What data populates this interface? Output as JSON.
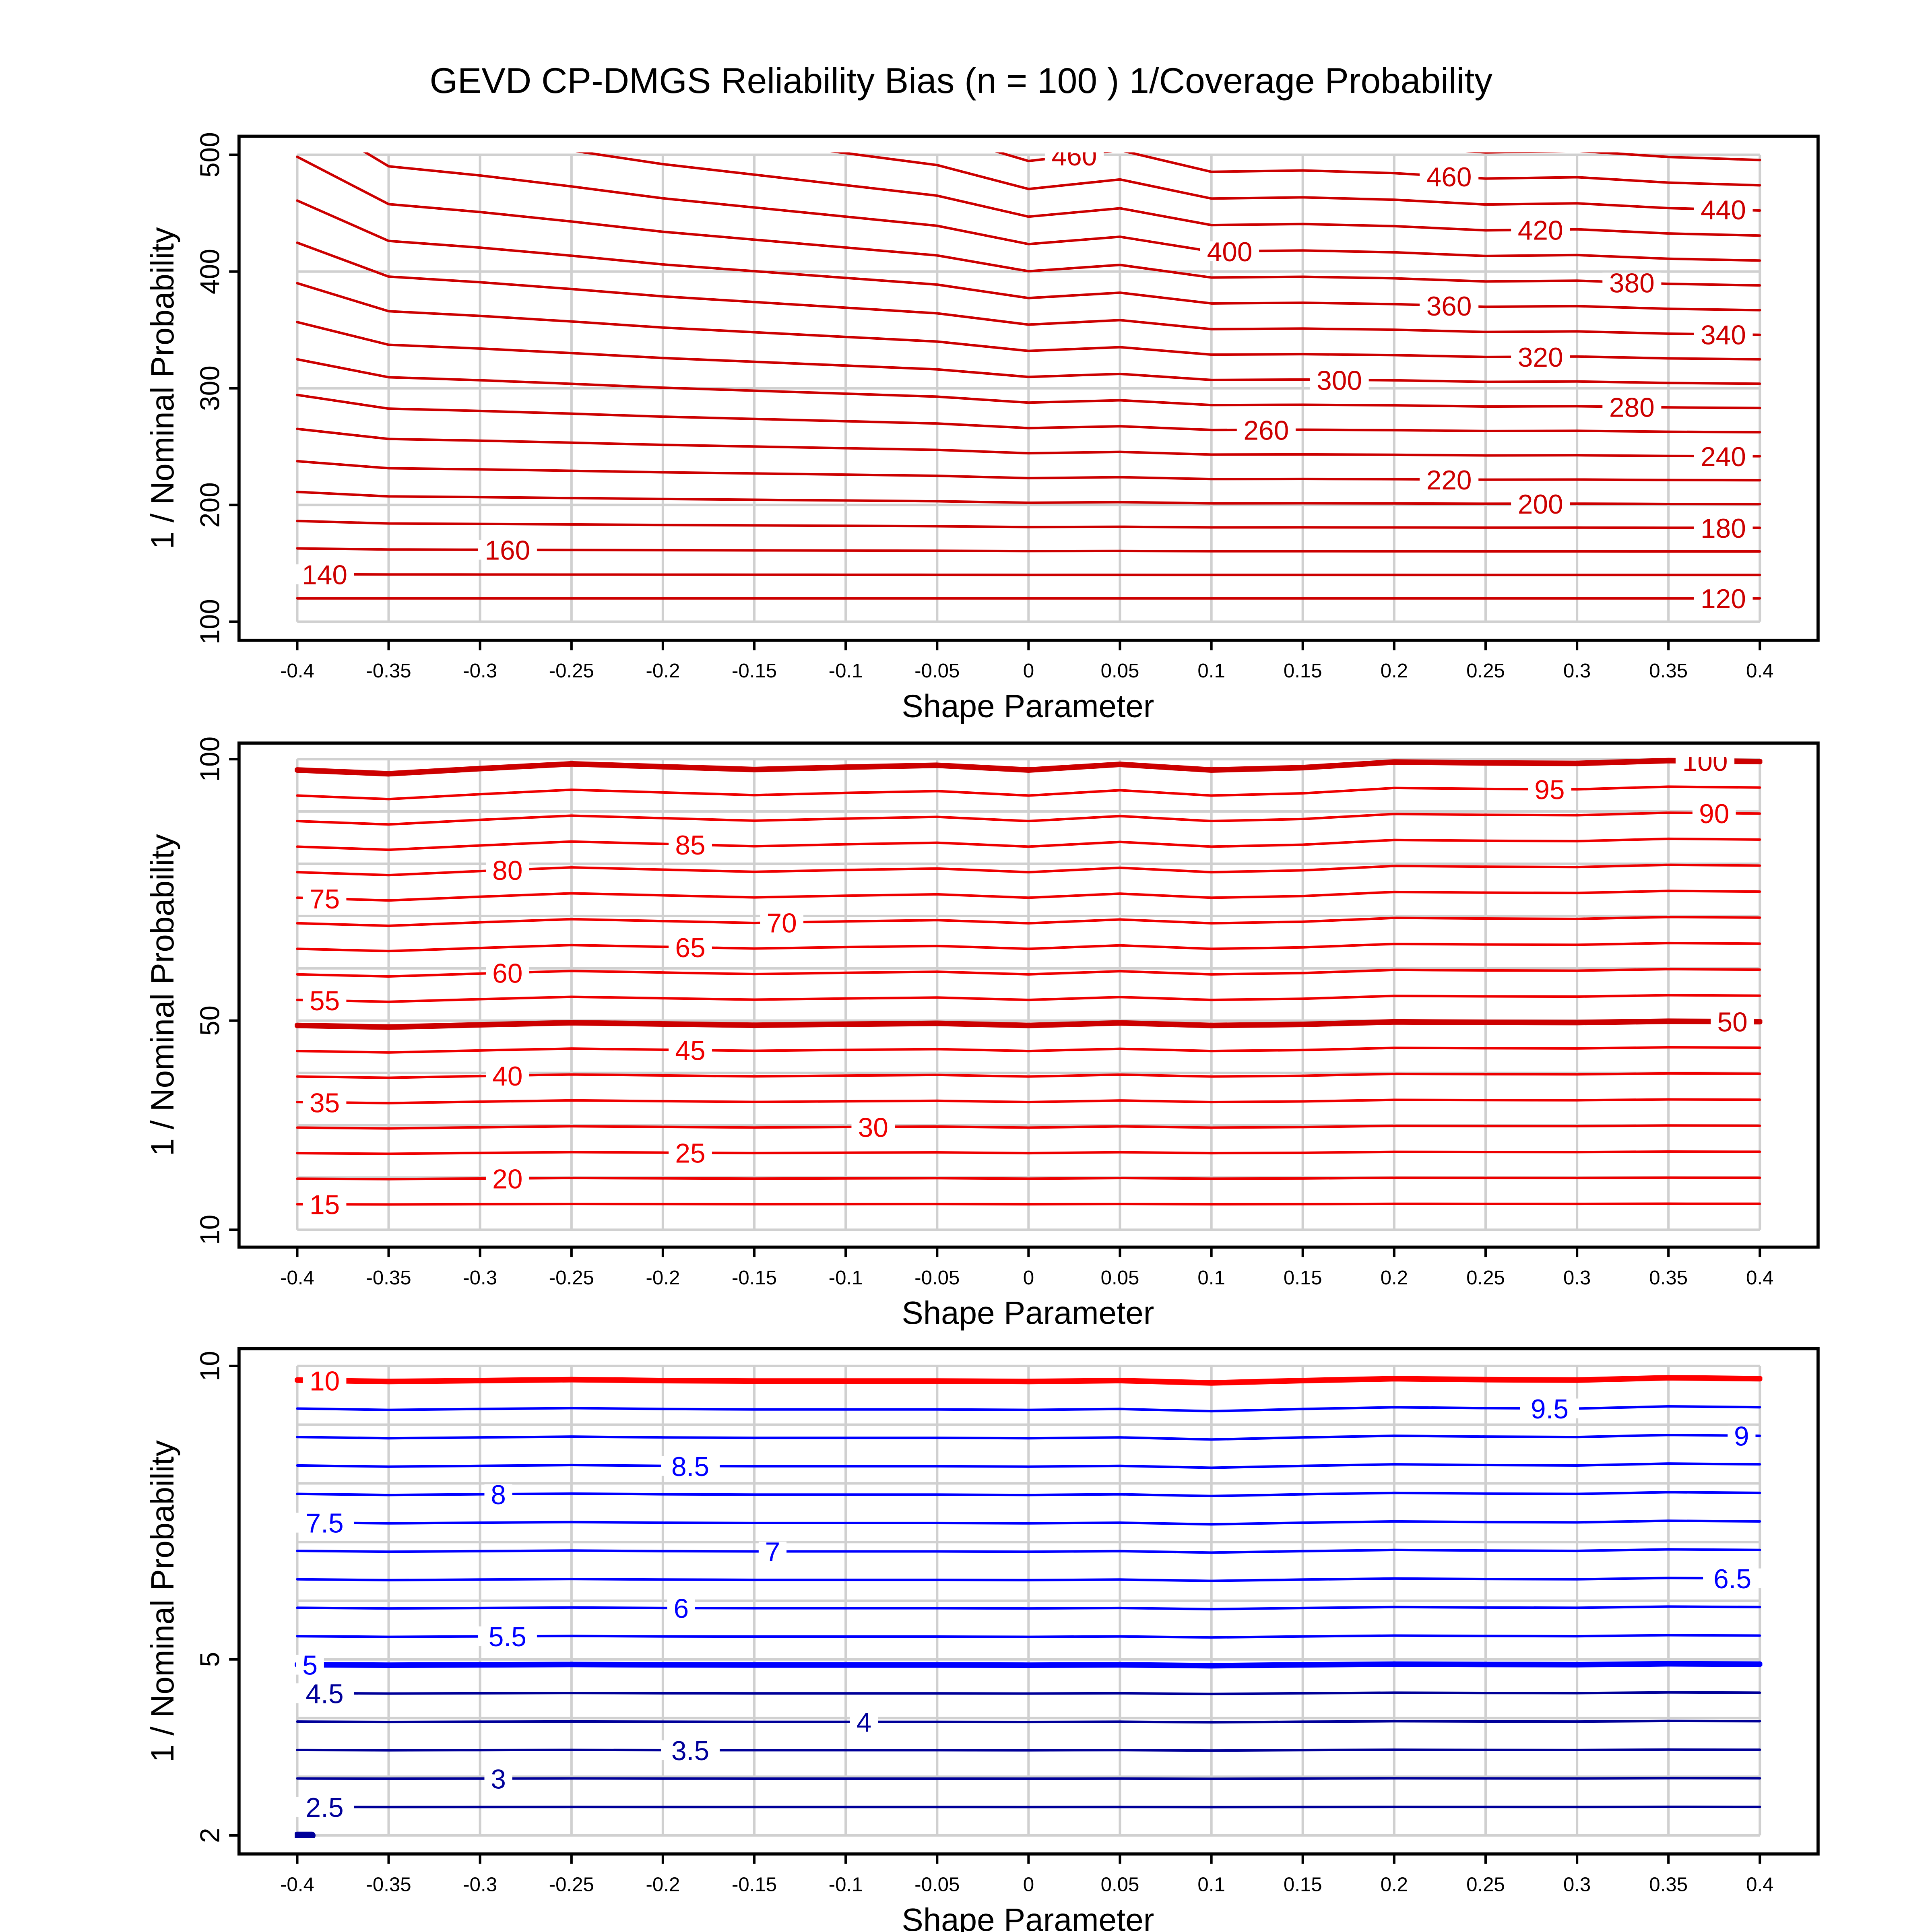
{
  "title": "GEVD CP-DMGS Reliability Bias (n = 100 ) 1/Coverage Probability",
  "chart_data": [
    {
      "type": "contour",
      "xlabel": "Shape Parameter",
      "ylabel": "1 / Nominal Probability",
      "xlim": [
        -0.4,
        0.4
      ],
      "ylim": [
        100,
        500
      ],
      "xticks": [
        -0.4,
        -0.35,
        -0.3,
        -0.25,
        -0.2,
        -0.15,
        -0.1,
        -0.05,
        0,
        0.05,
        0.1,
        0.15,
        0.2,
        0.25,
        0.3,
        0.35,
        0.4
      ],
      "yticks": [
        100,
        200,
        300,
        400,
        500
      ],
      "grid": true,
      "bias_model": "quadratic",
      "base": 120,
      "bias_by_x": [
        17.5,
        11.5,
        10.5,
        9.3,
        8,
        7,
        6,
        5,
        3.0,
        3.8,
        2.2,
        2.3,
        2.1,
        1.7,
        1.8,
        1.4,
        1.2
      ],
      "levels": [
        120,
        140,
        160,
        180,
        200,
        220,
        240,
        260,
        280,
        300,
        320,
        340,
        360,
        380,
        400,
        420,
        440,
        460,
        480,
        500
      ],
      "thick_levels": [],
      "colors": {
        "default": "#cc0000"
      },
      "labels": [
        {
          "level": 140,
          "x": -0.385,
          "text": "140"
        },
        {
          "level": 160,
          "x": -0.285,
          "text": "160"
        },
        {
          "level": 120,
          "x": 0.38,
          "text": "120"
        },
        {
          "level": 180,
          "x": 0.38,
          "text": "180"
        },
        {
          "level": 200,
          "x": 0.28,
          "text": "200"
        },
        {
          "level": 220,
          "x": 0.23,
          "text": "220"
        },
        {
          "level": 240,
          "x": 0.38,
          "text": "240"
        },
        {
          "level": 260,
          "x": 0.13,
          "text": "260"
        },
        {
          "level": 280,
          "x": 0.33,
          "text": "280"
        },
        {
          "level": 300,
          "x": 0.17,
          "text": "300"
        },
        {
          "level": 320,
          "x": 0.28,
          "text": "320"
        },
        {
          "level": 340,
          "x": 0.38,
          "text": "340"
        },
        {
          "level": 360,
          "x": 0.23,
          "text": "360"
        },
        {
          "level": 380,
          "x": 0.33,
          "text": "380"
        },
        {
          "level": 400,
          "x": 0.11,
          "text": "400"
        },
        {
          "level": 420,
          "x": 0.28,
          "text": "420"
        },
        {
          "level": 440,
          "x": 0.38,
          "text": "440"
        },
        {
          "level": 460,
          "x": 0.025,
          "text": "460"
        },
        {
          "level": 460,
          "x": 0.23,
          "text": "460"
        }
      ]
    },
    {
      "type": "contour",
      "xlabel": "Shape Parameter",
      "ylabel": "1 / Nominal Probability",
      "xlim": [
        -0.4,
        0.4
      ],
      "ylim": [
        10,
        100
      ],
      "xticks": [
        -0.4,
        -0.35,
        -0.3,
        -0.25,
        -0.2,
        -0.15,
        -0.1,
        -0.05,
        0,
        0.05,
        0.1,
        0.15,
        0.2,
        0.25,
        0.3,
        0.35,
        0.4
      ],
      "yticks": [
        10,
        50,
        100
      ],
      "grid_step": 10,
      "grid": true,
      "bias_model": "linear",
      "base": 10,
      "bias_by_x": [
        -0.023,
        -0.031,
        -0.02,
        -0.01,
        -0.016,
        -0.022,
        -0.017,
        -0.013,
        -0.023,
        -0.011,
        -0.023,
        -0.018,
        -0.006,
        -0.008,
        -0.009,
        -0.003,
        -0.005
      ],
      "levels": [
        15,
        20,
        25,
        30,
        35,
        40,
        45,
        50,
        55,
        60,
        65,
        70,
        75,
        80,
        85,
        90,
        95,
        100
      ],
      "thick_levels": [
        50,
        100
      ],
      "colors": {
        "default": "#ee0000",
        "thick": "#cc0000"
      },
      "labels": [
        {
          "level": 100,
          "x": 0.37,
          "text": "100"
        },
        {
          "level": 95,
          "x": 0.285,
          "text": "95"
        },
        {
          "level": 90,
          "x": 0.375,
          "text": "90"
        },
        {
          "level": 85,
          "x": -0.185,
          "text": "85"
        },
        {
          "level": 80,
          "x": -0.285,
          "text": "80"
        },
        {
          "level": 75,
          "x": -0.385,
          "text": "75"
        },
        {
          "level": 70,
          "x": -0.135,
          "text": "70"
        },
        {
          "level": 65,
          "x": -0.185,
          "text": "65"
        },
        {
          "level": 60,
          "x": -0.285,
          "text": "60"
        },
        {
          "level": 55,
          "x": -0.385,
          "text": "55"
        },
        {
          "level": 50,
          "x": 0.385,
          "text": "50"
        },
        {
          "level": 45,
          "x": -0.185,
          "text": "45"
        },
        {
          "level": 40,
          "x": -0.285,
          "text": "40"
        },
        {
          "level": 35,
          "x": -0.385,
          "text": "35"
        },
        {
          "level": 30,
          "x": -0.085,
          "text": "30"
        },
        {
          "level": 25,
          "x": -0.185,
          "text": "25"
        },
        {
          "level": 20,
          "x": -0.285,
          "text": "20"
        },
        {
          "level": 15,
          "x": -0.385,
          "text": "15"
        }
      ]
    },
    {
      "type": "contour",
      "xlabel": "Shape Parameter",
      "ylabel": "1 / Nominal Probability",
      "xlim": [
        -0.4,
        0.4
      ],
      "ylim": [
        2,
        10
      ],
      "xticks": [
        -0.4,
        -0.35,
        -0.3,
        -0.25,
        -0.2,
        -0.15,
        -0.1,
        -0.05,
        0,
        0.05,
        0.1,
        0.15,
        0.2,
        0.25,
        0.3,
        0.35,
        0.4
      ],
      "yticks": [
        2,
        5,
        10
      ],
      "grid_step": 1,
      "grid": true,
      "bias_model": "linear",
      "base": 2,
      "bias_by_x": [
        -0.03,
        -0.033,
        -0.031,
        -0.029,
        -0.031,
        -0.032,
        -0.032,
        -0.032,
        -0.033,
        -0.031,
        -0.036,
        -0.031,
        -0.027,
        -0.029,
        -0.03,
        -0.025,
        -0.027
      ],
      "levels": [
        2,
        2.5,
        3,
        3.5,
        4,
        4.5,
        5,
        5.5,
        6,
        6.5,
        7,
        7.5,
        8,
        8.5,
        9,
        9.5,
        10
      ],
      "level_extent": {
        "2": [
          -0.4,
          -0.392
        ]
      },
      "thick_levels": [
        2,
        5,
        10
      ],
      "colors": {
        "low": "#000099",
        "mid": "#0000ff",
        "high": "#ff0000"
      },
      "labels": [
        {
          "level": 10,
          "x": -0.385,
          "text": "10"
        },
        {
          "level": 9.5,
          "x": 0.285,
          "text": "9.5"
        },
        {
          "level": 9,
          "x": 0.39,
          "text": "9"
        },
        {
          "level": 8.5,
          "x": -0.185,
          "text": "8.5"
        },
        {
          "level": 8,
          "x": -0.29,
          "text": "8"
        },
        {
          "level": 7.5,
          "x": -0.385,
          "text": "7.5"
        },
        {
          "level": 7,
          "x": -0.14,
          "text": "7"
        },
        {
          "level": 6.5,
          "x": 0.385,
          "text": "6.5"
        },
        {
          "level": 6,
          "x": -0.19,
          "text": "6"
        },
        {
          "level": 5.5,
          "x": -0.285,
          "text": "5.5"
        },
        {
          "level": 5,
          "x": -0.393,
          "text": "5"
        },
        {
          "level": 4.5,
          "x": -0.385,
          "text": "4.5"
        },
        {
          "level": 4,
          "x": -0.09,
          "text": "4"
        },
        {
          "level": 3.5,
          "x": -0.185,
          "text": "3.5"
        },
        {
          "level": 3,
          "x": -0.29,
          "text": "3"
        },
        {
          "level": 2.5,
          "x": -0.385,
          "text": "2.5"
        }
      ]
    }
  ]
}
